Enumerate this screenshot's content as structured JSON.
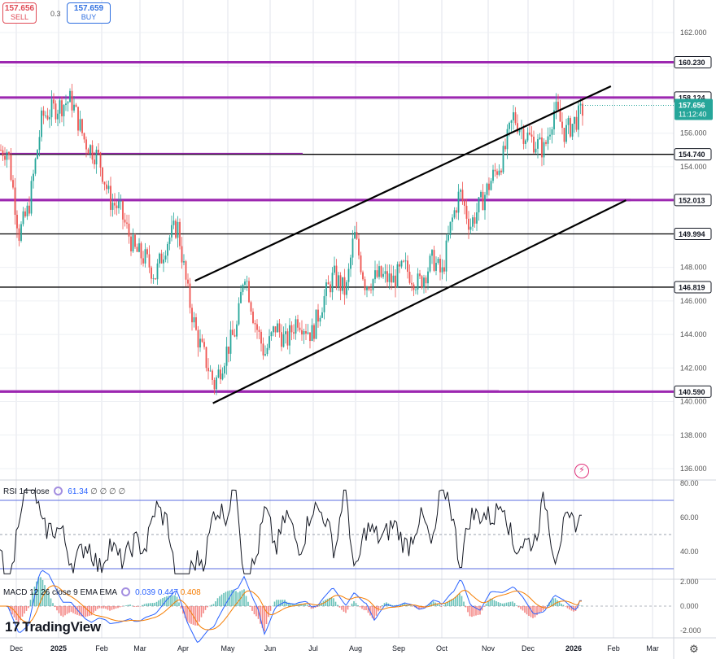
{
  "trade": {
    "sell_price": "157.656",
    "sell_label": "SELL",
    "spread": "0.3",
    "buy_price": "157.659",
    "buy_label": "BUY"
  },
  "brand": "TradingView",
  "axis": {
    "price_ticks": [
      "162.000",
      "160.000",
      "158.000",
      "156.000",
      "154.000",
      "152.000",
      "150.000",
      "148.000",
      "146.000",
      "144.000",
      "142.000",
      "140.000",
      "138.000",
      "136.000"
    ],
    "time_labels": [
      "Dec",
      "2025",
      "Feb",
      "Mar",
      "Apr",
      "May",
      "Jun",
      "Jul",
      "Aug",
      "Sep",
      "Oct",
      "Nov",
      "Dec",
      "2026",
      "Feb",
      "Mar"
    ]
  },
  "levels": [
    {
      "label": "160.230",
      "value": 160.23,
      "color": "#9c27b0"
    },
    {
      "label": "158.124",
      "value": 158.124,
      "color": "#9c27b0"
    },
    {
      "label": "154.740",
      "value": 154.74,
      "color": "#000000"
    },
    {
      "label": "152.013",
      "value": 152.013,
      "color": "#9c27b0"
    },
    {
      "label": "149.994",
      "value": 149.994,
      "color": "#000000"
    },
    {
      "label": "146.819",
      "value": 146.819,
      "color": "#000000"
    },
    {
      "label": "140.590",
      "value": 140.59,
      "color": "#9c27b0"
    }
  ],
  "last_price": {
    "value": "157.656",
    "countdown": "11:12:40",
    "color": "#26a69a"
  },
  "rsi": {
    "legend": "RSI 14 close",
    "value": "61.34",
    "placeholders": "∅ ∅ ∅ ∅",
    "ticks": [
      "80.00",
      "60.00",
      "40.00"
    ]
  },
  "macd": {
    "legend": "MACD 12 26 close 9 EMA EMA",
    "hist": "0.039",
    "macd": "0.447",
    "signal": "0.408",
    "ticks": [
      "2.000",
      "0.000",
      "-2.000"
    ]
  },
  "colors": {
    "up": "#26a69a",
    "down": "#ef5350",
    "macd_line": "#2962ff",
    "signal_line": "#f57c00",
    "purple": "#9c27b0"
  },
  "chart_data": {
    "type": "line",
    "title": "",
    "x_unit": "month",
    "months": [
      "Dec 2024",
      "Jan 2025",
      "Feb 2025",
      "Mar 2025",
      "Apr 2025",
      "May 2025",
      "Jun 2025",
      "Jul 2025",
      "Aug 2025",
      "Sep 2025",
      "Oct 2025",
      "Nov 2025",
      "Dec 2025",
      "Jan 2026",
      "Feb 2026",
      "Mar 2026"
    ],
    "ylim": [
      135,
      163
    ],
    "series": [
      {
        "name": "",
        "note": "approx closing price path read from candles",
        "points": [
          [
            "2024-11-25",
            155.0
          ],
          [
            "2024-12-03",
            150.0
          ],
          [
            "2024-12-10",
            151.5
          ],
          [
            "2024-12-20",
            157.0
          ],
          [
            "2024-12-30",
            157.5
          ],
          [
            "2025-01-10",
            158.0
          ],
          [
            "2025-01-20",
            155.5
          ],
          [
            "2025-01-30",
            154.5
          ],
          [
            "2025-02-07",
            152.0
          ],
          [
            "2025-02-14",
            151.5
          ],
          [
            "2025-02-25",
            149.0
          ],
          [
            "2025-03-05",
            148.5
          ],
          [
            "2025-03-12",
            147.5
          ],
          [
            "2025-03-20",
            149.5
          ],
          [
            "2025-03-28",
            150.5
          ],
          [
            "2025-04-04",
            146.5
          ],
          [
            "2025-04-10",
            144.0
          ],
          [
            "2025-04-16",
            142.5
          ],
          [
            "2025-04-22",
            141.0
          ],
          [
            "2025-04-30",
            143.0
          ],
          [
            "2025-05-08",
            144.5
          ],
          [
            "2025-05-13",
            148.0
          ],
          [
            "2025-05-20",
            145.0
          ],
          [
            "2025-05-28",
            142.8
          ],
          [
            "2025-06-05",
            144.5
          ],
          [
            "2025-06-12",
            143.5
          ],
          [
            "2025-06-20",
            145.0
          ],
          [
            "2025-06-30",
            144.0
          ],
          [
            "2025-07-08",
            146.0
          ],
          [
            "2025-07-16",
            147.5
          ],
          [
            "2025-07-25",
            146.5
          ],
          [
            "2025-07-31",
            150.0
          ],
          [
            "2025-08-08",
            147.0
          ],
          [
            "2025-08-18",
            147.5
          ],
          [
            "2025-08-28",
            147.2
          ],
          [
            "2025-09-05",
            148.0
          ],
          [
            "2025-09-15",
            147.0
          ],
          [
            "2025-09-25",
            148.5
          ],
          [
            "2025-10-01",
            147.5
          ],
          [
            "2025-10-07",
            150.5
          ],
          [
            "2025-10-13",
            152.5
          ],
          [
            "2025-10-20",
            150.5
          ],
          [
            "2025-10-28",
            152.0
          ],
          [
            "2025-11-05",
            153.5
          ],
          [
            "2025-11-12",
            154.5
          ],
          [
            "2025-11-20",
            157.0
          ],
          [
            "2025-11-28",
            156.0
          ],
          [
            "2025-12-05",
            155.5
          ],
          [
            "2025-12-12",
            155.0
          ],
          [
            "2025-12-19",
            157.5
          ],
          [
            "2025-12-26",
            156.0
          ],
          [
            "2026-01-05",
            157.0
          ],
          [
            "2026-01-10",
            157.656
          ]
        ]
      }
    ],
    "trend_channel": {
      "upper": [
        [
          "2025-04-09",
          147.2
        ],
        [
          "2026-01-30",
          158.8
        ]
      ],
      "lower": [
        [
          "2025-04-21",
          139.9
        ],
        [
          "2026-02-10",
          152.0
        ]
      ]
    },
    "rsi_ylim": [
      25,
      82
    ],
    "rsi_bands": [
      30,
      70
    ],
    "rsi_last": 61.34,
    "macd_last": {
      "macd": 0.447,
      "signal": 0.408,
      "hist": 0.039
    }
  }
}
